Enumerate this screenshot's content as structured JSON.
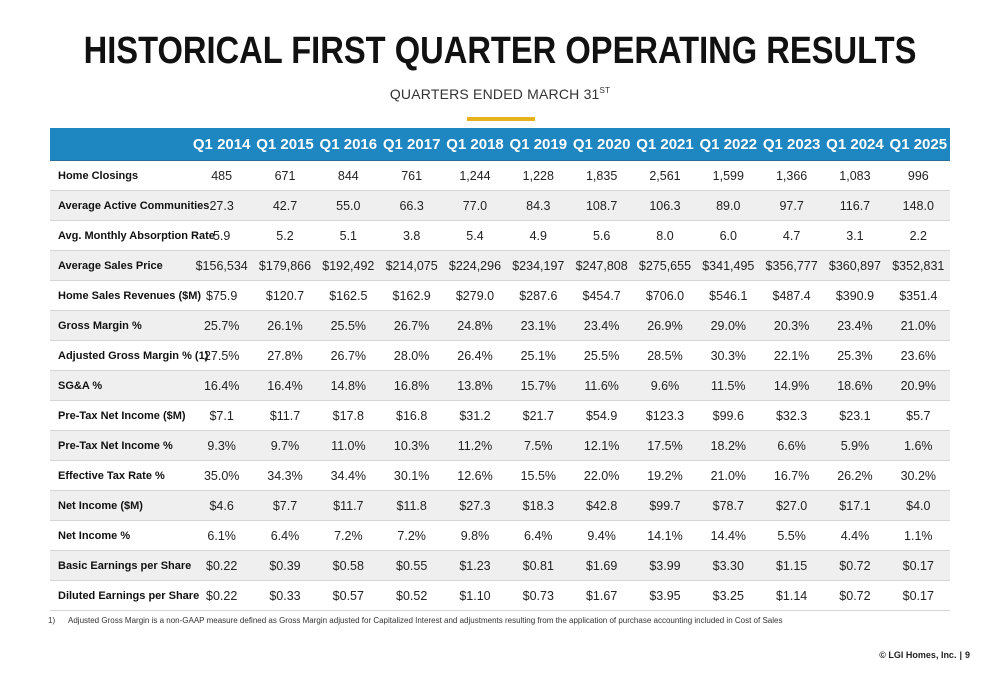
{
  "header": {
    "title": "HISTORICAL FIRST QUARTER OPERATING RESULTS",
    "subtitle": "QUARTERS ENDED MARCH 31",
    "subtitle_sup": "ST"
  },
  "colors": {
    "header_band": "#1e86c0",
    "accent": "#e8b21e"
  },
  "table": {
    "columns": [
      "Q1 2014",
      "Q1 2015",
      "Q1 2016",
      "Q1 2017",
      "Q1 2018",
      "Q1 2019",
      "Q1 2020",
      "Q1 2021",
      "Q1 2022",
      "Q1 2023",
      "Q1 2024",
      "Q1 2025"
    ],
    "rows": [
      {
        "label": "Home Closings",
        "values": [
          "485",
          "671",
          "844",
          "761",
          "1,244",
          "1,228",
          "1,835",
          "2,561",
          "1,599",
          "1,366",
          "1,083",
          "996"
        ]
      },
      {
        "label": "Average Active Communities",
        "values": [
          "27.3",
          "42.7",
          "55.0",
          "66.3",
          "77.0",
          "84.3",
          "108.7",
          "106.3",
          "89.0",
          "97.7",
          "116.7",
          "148.0"
        ]
      },
      {
        "label": "Avg. Monthly Absorption Rate",
        "values": [
          "5.9",
          "5.2",
          "5.1",
          "3.8",
          "5.4",
          "4.9",
          "5.6",
          "8.0",
          "6.0",
          "4.7",
          "3.1",
          "2.2"
        ]
      },
      {
        "label": "Average Sales Price",
        "values": [
          "$156,534",
          "$179,866",
          "$192,492",
          "$214,075",
          "$224,296",
          "$234,197",
          "$247,808",
          "$275,655",
          "$341,495",
          "$356,777",
          "$360,897",
          "$352,831"
        ]
      },
      {
        "label": "Home Sales Revenues ($M)",
        "values": [
          "$75.9",
          "$120.7",
          "$162.5",
          "$162.9",
          "$279.0",
          "$287.6",
          "$454.7",
          "$706.0",
          "$546.1",
          "$487.4",
          "$390.9",
          "$351.4"
        ]
      },
      {
        "label": "Gross Margin %",
        "values": [
          "25.7%",
          "26.1%",
          "25.5%",
          "26.7%",
          "24.8%",
          "23.1%",
          "23.4%",
          "26.9%",
          "29.0%",
          "20.3%",
          "23.4%",
          "21.0%"
        ]
      },
      {
        "label": "Adjusted Gross Margin % (1)",
        "values": [
          "27.5%",
          "27.8%",
          "26.7%",
          "28.0%",
          "26.4%",
          "25.1%",
          "25.5%",
          "28.5%",
          "30.3%",
          "22.1%",
          "25.3%",
          "23.6%"
        ]
      },
      {
        "label": "SG&A %",
        "values": [
          "16.4%",
          "16.4%",
          "14.8%",
          "16.8%",
          "13.8%",
          "15.7%",
          "11.6%",
          "9.6%",
          "11.5%",
          "14.9%",
          "18.6%",
          "20.9%"
        ]
      },
      {
        "label": "Pre-Tax Net Income ($M)",
        "values": [
          "$7.1",
          "$11.7",
          "$17.8",
          "$16.8",
          "$31.2",
          "$21.7",
          "$54.9",
          "$123.3",
          "$99.6",
          "$32.3",
          "$23.1",
          "$5.7"
        ]
      },
      {
        "label": "Pre-Tax Net Income %",
        "values": [
          "9.3%",
          "9.7%",
          "11.0%",
          "10.3%",
          "11.2%",
          "7.5%",
          "12.1%",
          "17.5%",
          "18.2%",
          "6.6%",
          "5.9%",
          "1.6%"
        ]
      },
      {
        "label": "Effective Tax Rate %",
        "values": [
          "35.0%",
          "34.3%",
          "34.4%",
          "30.1%",
          "12.6%",
          "15.5%",
          "22.0%",
          "19.2%",
          "21.0%",
          "16.7%",
          "26.2%",
          "30.2%"
        ]
      },
      {
        "label": "Net Income ($M)",
        "values": [
          "$4.6",
          "$7.7",
          "$11.7",
          "$11.8",
          "$27.3",
          "$18.3",
          "$42.8",
          "$99.7",
          "$78.7",
          "$27.0",
          "$17.1",
          "$4.0"
        ]
      },
      {
        "label": "Net Income %",
        "values": [
          "6.1%",
          "6.4%",
          "7.2%",
          "7.2%",
          "9.8%",
          "6.4%",
          "9.4%",
          "14.1%",
          "14.4%",
          "5.5%",
          "4.4%",
          "1.1%"
        ]
      },
      {
        "label": "Basic Earnings per Share",
        "values": [
          "$0.22",
          "$0.39",
          "$0.58",
          "$0.55",
          "$1.23",
          "$0.81",
          "$1.69",
          "$3.99",
          "$3.30",
          "$1.15",
          "$0.72",
          "$0.17"
        ]
      },
      {
        "label": "Diluted Earnings per Share",
        "values": [
          "$0.22",
          "$0.33",
          "$0.57",
          "$0.52",
          "$1.10",
          "$0.73",
          "$1.67",
          "$3.95",
          "$3.25",
          "$1.14",
          "$0.72",
          "$0.17"
        ]
      }
    ]
  },
  "footnote": {
    "marker": "1)",
    "text": "Adjusted Gross Margin is a non-GAAP measure defined as Gross Margin adjusted for Capitalized Interest and adjustments resulting from the application of purchase accounting included in Cost of Sales"
  },
  "footer": {
    "company": "© LGI Homes, Inc.",
    "separator": "|",
    "page": "9"
  }
}
